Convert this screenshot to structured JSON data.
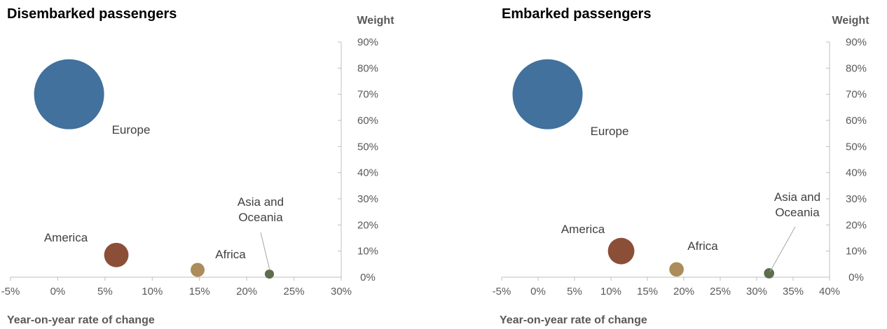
{
  "colors": {
    "Europe": "#41719c",
    "America": "#8b4f37",
    "Africa": "#ac8c5a",
    "Asia and Oceania": "#5b6e4d"
  },
  "chart_data": [
    {
      "type": "bubble",
      "title": "Disembarked passengers",
      "xlabel": "Year-on-year rate of change",
      "ylabel": "Weight",
      "xlim": [
        -0.05,
        0.3
      ],
      "ylim": [
        0,
        0.9
      ],
      "x_tick_labels": [
        "-5%",
        "0%",
        "5%",
        "10%",
        "15%",
        "20%",
        "25%",
        "30%"
      ],
      "y_tick_labels": [
        "0%",
        "10%",
        "20%",
        "30%",
        "40%",
        "50%",
        "60%",
        "70%",
        "80%",
        "90%"
      ],
      "points": [
        {
          "label": "Europe",
          "x": 0.012,
          "y": 0.7,
          "size": 0.7
        },
        {
          "label": "America",
          "x": 0.062,
          "y": 0.085,
          "size": 0.085
        },
        {
          "label": "Africa",
          "x": 0.148,
          "y": 0.028,
          "size": 0.028
        },
        {
          "label": "Asia and Oceania",
          "x": 0.224,
          "y": 0.012,
          "size": 0.012
        }
      ]
    },
    {
      "type": "bubble",
      "title": "Embarked passengers",
      "xlabel": "Year-on-year rate of change",
      "ylabel": "Weight",
      "xlim": [
        -0.05,
        0.4
      ],
      "ylim": [
        0,
        0.9
      ],
      "x_tick_labels": [
        "-5%",
        "0%",
        "5%",
        "10%",
        "15%",
        "20%",
        "25%",
        "30%",
        "35%",
        "40%"
      ],
      "y_tick_labels": [
        "0%",
        "10%",
        "20%",
        "30%",
        "40%",
        "50%",
        "60%",
        "70%",
        "80%",
        "90%"
      ],
      "points": [
        {
          "label": "Europe",
          "x": 0.013,
          "y": 0.7,
          "size": 0.7
        },
        {
          "label": "America",
          "x": 0.114,
          "y": 0.1,
          "size": 0.1
        },
        {
          "label": "Africa",
          "x": 0.19,
          "y": 0.03,
          "size": 0.03
        },
        {
          "label": "Asia and Oceania",
          "x": 0.317,
          "y": 0.015,
          "size": 0.015
        }
      ]
    }
  ]
}
